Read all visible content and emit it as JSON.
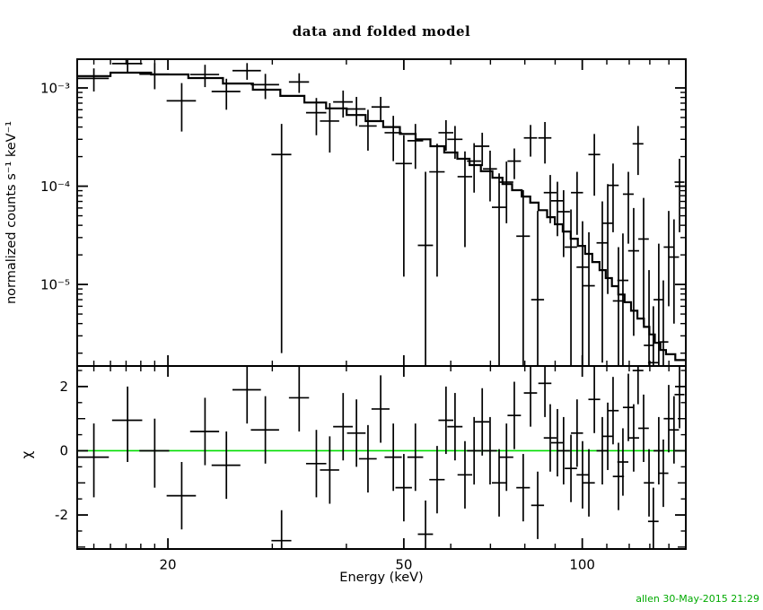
{
  "chart_data": {
    "type": "scatter",
    "panels": [
      "spectrum-with-folded-model",
      "chi-residuals"
    ],
    "title": "data and folded model",
    "xlabel": "Energy (keV)",
    "ylabel_top": "normalized counts s⁻¹ keV⁻¹",
    "ylabel_bottom": "χ",
    "signature": "allen 30-May-2015 21:29",
    "colors": {
      "data": "#000000",
      "model": "#000000",
      "zero_line": "#00dd00",
      "signature": "#00aa00",
      "background": "#ffffff"
    },
    "x_axis": {
      "scale": "log",
      "min": 14.06,
      "max": 149.5,
      "major_ticks": [
        20,
        50,
        100
      ],
      "major_labels": [
        "20",
        "50",
        "100"
      ],
      "minor_ticks": [
        15,
        16,
        17,
        18,
        19,
        30,
        40,
        60,
        70,
        80,
        90,
        110,
        120,
        130,
        140
      ]
    },
    "y_axis_top": {
      "scale": "log",
      "min": 1.48e-06,
      "max": 0.00196,
      "major_ticks": [
        0.001,
        0.0001,
        1e-05
      ],
      "major_labels": [
        "10⁻³",
        "10⁻⁴",
        "10⁻⁵"
      ],
      "minor_ticks": [
        2e-06,
        3e-06,
        4e-06,
        5e-06,
        6e-06,
        7e-06,
        8e-06,
        9e-06,
        2e-05,
        3e-05,
        4e-05,
        5e-05,
        6e-05,
        7e-05,
        8e-05,
        9e-05,
        0.0002,
        0.0003,
        0.0004,
        0.0005,
        0.0006,
        0.0007,
        0.0008,
        0.0009
      ]
    },
    "y_axis_bottom": {
      "scale": "linear",
      "min": -3.06,
      "max": 2.64,
      "major_ticks": [
        -2,
        0,
        2
      ],
      "major_labels": [
        "-2",
        "0",
        "2"
      ],
      "minor_ticks": [
        -3,
        -2.5,
        -1.5,
        -1,
        -0.5,
        0.5,
        1,
        1.5,
        2.5
      ]
    },
    "model": {
      "edges_kev": [
        14.06,
        16.0,
        18.74,
        21.65,
        24.77,
        27.82,
        30.95,
        33.98,
        36.97,
        40.05,
        43.1,
        46.15,
        49.25,
        52.35,
        55.45,
        58.5,
        61.55,
        64.55,
        67.45,
        70.55,
        73.35,
        76.15,
        79.05,
        81.7,
        84.4,
        87.25,
        89.9,
        92.7,
        95.6,
        98.3,
        101.1,
        103.95,
        106.95,
        109.55,
        112.2,
        115.0,
        117.85,
        120.85,
        123.9,
        127.05,
        129.75,
        132.55,
        135.45,
        138.4,
        143.5,
        149.5
      ],
      "values": [
        0.00132,
        0.00143,
        0.00137,
        0.00126,
        0.00111,
        0.00096,
        0.00083,
        0.00071,
        0.00062,
        0.00053,
        0.00046,
        0.0004,
        0.00034,
        0.0003,
        0.000255,
        0.00022,
        0.00019,
        0.000164,
        0.000142,
        0.000122,
        0.000105,
        9.1e-05,
        7.85e-05,
        6.8e-05,
        5.7e-05,
        4.84e-05,
        4.1e-05,
        3.46e-05,
        2.92e-05,
        2.47e-05,
        2.05e-05,
        1.69e-05,
        1.4e-05,
        1.16e-05,
        9.6e-06,
        7.9e-06,
        6.6e-06,
        5.4e-06,
        4.5e-06,
        3.7e-06,
        3.1e-06,
        2.55e-06,
        2.15e-06,
        1.95e-06,
        1.7e-06
      ]
    },
    "spectrum_points": [
      [
        15.0,
        0.9,
        0.00125,
        0.00092,
        0.00158
      ],
      [
        17.1,
        1.0,
        0.00177,
        0.00141,
        0.00213
      ],
      [
        19.0,
        1.1,
        0.00138,
        0.00097,
        0.00179
      ],
      [
        21.1,
        1.2,
        0.00074,
        0.00036,
        0.00112
      ],
      [
        23.1,
        1.3,
        0.00137,
        0.00102,
        0.00172
      ],
      [
        25.1,
        1.4,
        0.00092,
        0.0006,
        0.00124
      ],
      [
        27.2,
        1.5,
        0.0015,
        0.00121,
        0.00179
      ],
      [
        29.2,
        1.6,
        0.00108,
        0.00077,
        0.00139
      ],
      [
        31.1,
        1.2,
        0.00021,
        2e-06,
        0.00043
      ],
      [
        33.3,
        1.3,
        0.00115,
        0.00089,
        0.00141
      ],
      [
        35.6,
        1.4,
        0.00056,
        0.00033,
        0.00079
      ],
      [
        37.5,
        1.4,
        0.00046,
        0.00022,
        0.0007
      ],
      [
        39.5,
        1.5,
        0.00072,
        0.0005,
        0.00094
      ],
      [
        41.6,
        1.5,
        0.00061,
        0.00041,
        0.00081
      ],
      [
        43.5,
        1.5,
        0.00041,
        0.00023,
        0.0006
      ],
      [
        45.7,
        1.6,
        0.00064,
        0.00047,
        0.00081
      ],
      [
        48.0,
        1.6,
        0.00035,
        0.00018,
        0.00052
      ],
      [
        50.0,
        1.6,
        0.00017,
        1.2e-05,
        0.00033
      ],
      [
        52.3,
        1.6,
        0.00029,
        0.00015,
        0.00043
      ],
      [
        54.4,
        1.6,
        2.5e-05,
        1.5e-06,
        0.00014
      ],
      [
        56.9,
        1.7,
        0.00014,
        1.2e-05,
        0.00027
      ],
      [
        58.9,
        1.7,
        0.00035,
        0.00023,
        0.00047
      ],
      [
        61.0,
        1.8,
        0.0003,
        0.00019,
        0.00041
      ],
      [
        63.4,
        1.8,
        0.000125,
        2.4e-05,
        0.000226
      ],
      [
        65.7,
        1.8,
        0.00018,
        8.6e-05,
        0.000274
      ],
      [
        67.8,
        1.9,
        0.000255,
        0.00016,
        0.00035
      ],
      [
        69.9,
        1.9,
        0.00015,
        7e-05,
        0.00023
      ],
      [
        72.4,
        2.0,
        6.1e-05,
        1.5e-06,
        0.000135
      ],
      [
        74.5,
        2.0,
        0.00011,
        4.2e-05,
        0.000178
      ],
      [
        76.8,
        2.0,
        0.00018,
        0.000118,
        0.000242
      ],
      [
        79.5,
        2.1,
        3.1e-05,
        1.5e-06,
        9.1e-05
      ],
      [
        81.8,
        2.1,
        0.00031,
        0.0002,
        0.00042
      ],
      [
        84.1,
        2.1,
        7e-06,
        1.5e-06,
        5.6e-05
      ],
      [
        86.5,
        2.2,
        0.00031,
        0.00017,
        0.00045
      ],
      [
        88.3,
        2.2,
        8.6e-05,
        4.2e-05,
        0.00013
      ],
      [
        90.8,
        2.2,
        7.1e-05,
        3.1e-05,
        0.000111
      ],
      [
        93.0,
        2.3,
        5.5e-05,
        1.9e-05,
        9.1e-05
      ],
      [
        95.7,
        2.3,
        2.4e-05,
        1.5e-06,
        5.8e-05
      ],
      [
        98.0,
        2.3,
        8.6e-05,
        3.2e-05,
        0.00014
      ],
      [
        100.1,
        2.3,
        1.5e-05,
        1.5e-06,
        4.4e-05
      ],
      [
        102.6,
        2.4,
        9.7e-06,
        1.5e-06,
        3.4e-05
      ],
      [
        104.8,
        2.4,
        0.00021,
        8e-05,
        0.00034
      ],
      [
        108.1,
        2.4,
        2.65e-05,
        1.6e-06,
        7e-05
      ],
      [
        110.4,
        2.4,
        4.2e-05,
        8e-06,
        0.000105
      ],
      [
        112.7,
        2.5,
        0.000102,
        3.4e-05,
        0.00017
      ],
      [
        115.1,
        2.5,
        6.8e-06,
        1.5e-06,
        2.4e-05
      ],
      [
        117.1,
        2.5,
        1.1e-05,
        1.5e-06,
        3.3e-05
      ],
      [
        119.6,
        2.5,
        8.3e-05,
        2.6e-05,
        0.00014
      ],
      [
        122.1,
        2.6,
        2.2e-05,
        3e-06,
        6e-05
      ],
      [
        124.2,
        2.6,
        0.00027,
        0.00013,
        0.00041
      ],
      [
        126.9,
        2.6,
        2.9e-05,
        4e-06,
        7.6e-05
      ],
      [
        129.6,
        2.6,
        2.4e-06,
        1.5e-06,
        1.4e-05
      ],
      [
        131.8,
        2.7,
        1.6e-06,
        1.5e-06,
        6e-06
      ],
      [
        134.6,
        2.7,
        7e-06,
        1.5e-06,
        2.6e-05
      ],
      [
        137.0,
        2.7,
        2.6e-06,
        1.5e-06,
        1.1e-05
      ],
      [
        139.9,
        2.7,
        2.4e-05,
        6e-06,
        5.6e-05
      ],
      [
        142.8,
        2.8,
        1.9e-05,
        4e-06,
        4.6e-05
      ],
      [
        145.9,
        2.8,
        0.00011,
        3.4e-05,
        0.00019
      ]
    ],
    "residual_points": [
      [
        15.0,
        -0.2,
        -1.45,
        0.85
      ],
      [
        17.1,
        0.95,
        -0.35,
        2.0
      ],
      [
        19.0,
        0.0,
        -1.15,
        1.0
      ],
      [
        21.1,
        -1.4,
        -2.45,
        -0.35
      ],
      [
        23.1,
        0.6,
        -0.45,
        1.65
      ],
      [
        25.1,
        -0.45,
        -1.5,
        0.6
      ],
      [
        27.2,
        1.9,
        0.85,
        2.95
      ],
      [
        29.2,
        0.65,
        -0.4,
        1.7
      ],
      [
        31.1,
        -2.8,
        -3.8,
        -1.85
      ],
      [
        33.3,
        1.65,
        0.6,
        2.7
      ],
      [
        35.6,
        -0.4,
        -1.45,
        0.65
      ],
      [
        37.5,
        -0.6,
        -1.65,
        0.45
      ],
      [
        39.5,
        0.75,
        -0.3,
        1.8
      ],
      [
        41.6,
        0.55,
        -0.5,
        1.6
      ],
      [
        43.5,
        -0.25,
        -1.3,
        0.8
      ],
      [
        45.7,
        1.3,
        0.25,
        2.35
      ],
      [
        48.0,
        -0.2,
        -1.25,
        0.85
      ],
      [
        50.0,
        -1.15,
        -2.2,
        -0.1
      ],
      [
        52.3,
        -0.2,
        -1.25,
        0.85
      ],
      [
        54.4,
        -2.6,
        -3.65,
        -1.55
      ],
      [
        56.9,
        -0.9,
        -1.95,
        0.15
      ],
      [
        58.9,
        0.95,
        -0.1,
        2.0
      ],
      [
        61.0,
        0.75,
        -0.3,
        1.8
      ],
      [
        63.4,
        -0.75,
        -1.8,
        0.3
      ],
      [
        65.7,
        0.0,
        -1.05,
        1.05
      ],
      [
        67.8,
        0.9,
        -0.15,
        1.95
      ],
      [
        69.9,
        0.0,
        -1.05,
        1.05
      ],
      [
        72.4,
        -1.0,
        -2.05,
        0.05
      ],
      [
        74.5,
        -0.2,
        -1.25,
        0.85
      ],
      [
        76.8,
        1.1,
        0.05,
        2.15
      ],
      [
        79.5,
        -1.15,
        -2.2,
        -0.1
      ],
      [
        81.8,
        1.8,
        0.75,
        2.85
      ],
      [
        84.1,
        -1.7,
        -2.75,
        -0.65
      ],
      [
        86.5,
        2.1,
        1.05,
        3.15
      ],
      [
        88.3,
        0.4,
        -0.65,
        1.45
      ],
      [
        90.8,
        0.25,
        -0.8,
        1.3
      ],
      [
        93.0,
        0.0,
        -1.05,
        1.05
      ],
      [
        95.7,
        -0.55,
        -1.6,
        0.5
      ],
      [
        98.0,
        0.55,
        -0.5,
        1.6
      ],
      [
        100.1,
        -0.75,
        -1.8,
        0.3
      ],
      [
        102.6,
        -1.0,
        -2.05,
        0.05
      ],
      [
        104.8,
        1.6,
        0.55,
        2.65
      ],
      [
        108.1,
        0.0,
        -1.05,
        1.05
      ],
      [
        110.4,
        0.45,
        -0.6,
        1.5
      ],
      [
        112.7,
        1.25,
        0.2,
        2.3
      ],
      [
        115.1,
        -0.8,
        -1.85,
        0.25
      ],
      [
        117.1,
        -0.35,
        -1.4,
        0.7
      ],
      [
        119.6,
        1.35,
        0.3,
        2.4
      ],
      [
        122.1,
        0.4,
        -0.65,
        1.45
      ],
      [
        124.2,
        2.5,
        1.45,
        3.5
      ],
      [
        126.9,
        0.7,
        -0.35,
        1.75
      ],
      [
        129.6,
        -1.0,
        -2.05,
        0.05
      ],
      [
        131.8,
        -2.2,
        -3.25,
        -1.15
      ],
      [
        134.6,
        0.0,
        -1.05,
        1.05
      ],
      [
        137.0,
        -0.7,
        -1.75,
        0.35
      ],
      [
        139.9,
        1.0,
        -0.05,
        2.05
      ],
      [
        142.8,
        0.65,
        -0.4,
        1.7
      ],
      [
        145.9,
        1.75,
        0.7,
        2.8
      ]
    ]
  }
}
